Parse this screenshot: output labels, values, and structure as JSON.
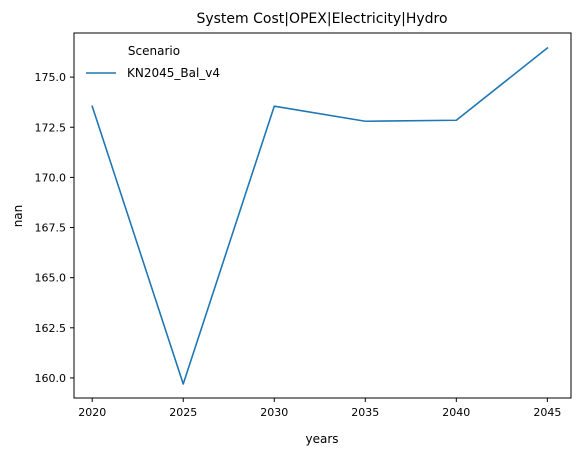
{
  "chart_data": {
    "type": "line",
    "title": "System Cost|OPEX|Electricity|Hydro",
    "xlabel": "years",
    "ylabel": "nan",
    "x": [
      2020,
      2025,
      2030,
      2035,
      2040,
      2045
    ],
    "series": [
      {
        "name": "KN2045_Bal_v4",
        "values": [
          173.55,
          159.7,
          173.55,
          172.8,
          172.85,
          176.45
        ],
        "color": "#1f77b4"
      }
    ],
    "xlim": [
      2019.0,
      2046.3
    ],
    "ylim": [
      159.0,
      177.2
    ],
    "xticks": [
      2020,
      2025,
      2030,
      2035,
      2040,
      2045
    ],
    "xtick_labels": [
      "2020",
      "2025",
      "2030",
      "2035",
      "2040",
      "2045"
    ],
    "yticks": [
      160.0,
      162.5,
      165.0,
      167.5,
      170.0,
      172.5,
      175.0
    ],
    "ytick_labels": [
      "160.0",
      "162.5",
      "165.0",
      "167.5",
      "170.0",
      "172.5",
      "175.0"
    ],
    "grid": false,
    "legend": {
      "title": "Scenario",
      "placement": "upper-left",
      "frameless": true
    }
  }
}
